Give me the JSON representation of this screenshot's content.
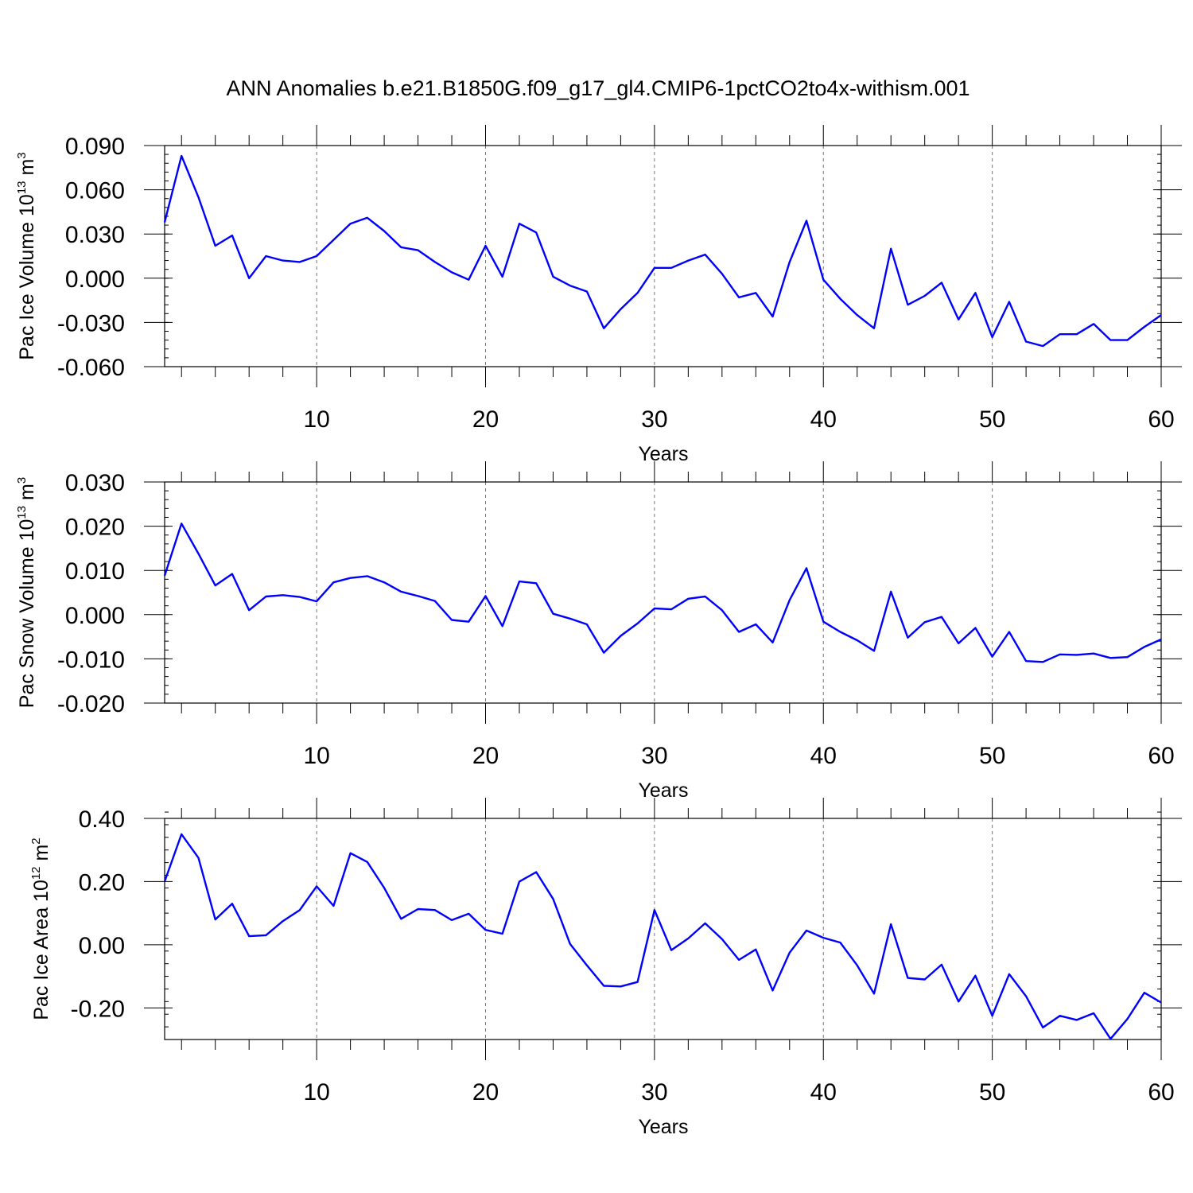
{
  "figure": {
    "title": "ANN Anomalies b.e21.B1850G.f09_g17_gl4.CMIP6-1pctCO2to4x-withism.001"
  },
  "colors": {
    "series": "#0000ff",
    "grid": "#777777",
    "axes": "#000000"
  },
  "chart_data": [
    {
      "type": "line",
      "name": "pac-ice-volume",
      "ylabel_main": "Pac Ice Volume 10",
      "ylabel_exp": "13",
      "ylabel_unit": " m",
      "ylabel_unit_exp": "3",
      "xlabel": "Years",
      "xlim": [
        1,
        60
      ],
      "ylim": [
        -0.06,
        0.09
      ],
      "yticks": [
        -0.06,
        -0.03,
        0.0,
        0.03,
        0.06,
        0.09
      ],
      "ytick_labels": [
        "-0.060",
        "-0.030",
        "0.000",
        "0.030",
        "0.060",
        "0.090"
      ],
      "yminor_step": 0.006,
      "xticks": [
        10,
        20,
        30,
        40,
        50,
        60
      ],
      "xtick_labels": [
        "10",
        "20",
        "30",
        "40",
        "50",
        "60"
      ],
      "grid_x": [
        10,
        20,
        30,
        40,
        50
      ],
      "x_start": 1,
      "values": [
        0.038,
        0.083,
        0.055,
        0.022,
        0.029,
        0.0,
        0.015,
        0.012,
        0.011,
        0.015,
        0.026,
        0.037,
        0.041,
        0.032,
        0.021,
        0.019,
        0.011,
        0.004,
        -0.001,
        0.022,
        0.001,
        0.037,
        0.031,
        0.001,
        -0.005,
        -0.009,
        -0.034,
        -0.021,
        -0.01,
        0.007,
        0.007,
        0.012,
        0.016,
        0.003,
        -0.013,
        -0.01,
        -0.026,
        0.011,
        0.039,
        -0.001,
        -0.014,
        -0.025,
        -0.034,
        0.02,
        -0.018,
        -0.012,
        -0.003,
        -0.028,
        -0.01,
        -0.04,
        -0.016,
        -0.043,
        -0.046,
        -0.038,
        -0.038,
        -0.031,
        -0.042,
        -0.042,
        -0.033,
        -0.025
      ]
    },
    {
      "type": "line",
      "name": "pac-snow-volume",
      "ylabel_main": "Pac Snow Volume 10",
      "ylabel_exp": "13",
      "ylabel_unit": " m",
      "ylabel_unit_exp": "3",
      "xlabel": "Years",
      "xlim": [
        1,
        60
      ],
      "ylim": [
        -0.02,
        0.03
      ],
      "yticks": [
        -0.02,
        -0.01,
        0.0,
        0.01,
        0.02,
        0.03
      ],
      "ytick_labels": [
        "-0.020",
        "-0.010",
        "0.000",
        "0.010",
        "0.020",
        "0.030"
      ],
      "yminor_step": 0.002,
      "xticks": [
        10,
        20,
        30,
        40,
        50,
        60
      ],
      "xtick_labels": [
        "10",
        "20",
        "30",
        "40",
        "50",
        "60"
      ],
      "grid_x": [
        10,
        20,
        30,
        40,
        50
      ],
      "x_start": 1,
      "values": [
        0.0088,
        0.0206,
        0.0138,
        0.0066,
        0.0092,
        0.001,
        0.0041,
        0.0044,
        0.004,
        0.003,
        0.0073,
        0.0083,
        0.0087,
        0.0073,
        0.0052,
        0.0042,
        0.0031,
        -0.0012,
        -0.0016,
        0.0042,
        -0.0026,
        0.0075,
        0.0071,
        0.0002,
        -0.0009,
        -0.0022,
        -0.0086,
        -0.0048,
        -0.002,
        0.0014,
        0.0012,
        0.0036,
        0.0041,
        0.001,
        -0.0039,
        -0.0022,
        -0.0063,
        0.0033,
        0.0105,
        -0.0016,
        -0.0039,
        -0.0058,
        -0.0082,
        0.0052,
        -0.0052,
        -0.0017,
        -0.0005,
        -0.0065,
        -0.003,
        -0.0095,
        -0.0039,
        -0.0105,
        -0.0107,
        -0.009,
        -0.0091,
        -0.0088,
        -0.0098,
        -0.0096,
        -0.0073,
        -0.0056
      ]
    },
    {
      "type": "line",
      "name": "pac-ice-area",
      "ylabel_main": "Pac Ice Area 10",
      "ylabel_exp": "12",
      "ylabel_unit": " m",
      "ylabel_unit_exp": "2",
      "xlabel": "Years",
      "xlim": [
        1,
        60
      ],
      "ylim": [
        -0.3,
        0.4
      ],
      "yticks": [
        -0.2,
        0.0,
        0.2,
        0.4
      ],
      "ytick_labels": [
        "-0.20",
        "0.00",
        "0.20",
        "0.40"
      ],
      "yminor_step": 0.04,
      "xticks": [
        10,
        20,
        30,
        40,
        50,
        60
      ],
      "xtick_labels": [
        "10",
        "20",
        "30",
        "40",
        "50",
        "60"
      ],
      "grid_x": [
        10,
        20,
        30,
        40,
        50
      ],
      "x_start": 1,
      "values": [
        0.2,
        0.35,
        0.275,
        0.08,
        0.13,
        0.027,
        0.03,
        0.075,
        0.11,
        0.185,
        0.123,
        0.29,
        0.262,
        0.18,
        0.082,
        0.113,
        0.11,
        0.078,
        0.098,
        0.047,
        0.035,
        0.2,
        0.23,
        0.145,
        0.003,
        -0.065,
        -0.13,
        -0.132,
        -0.118,
        0.11,
        -0.017,
        0.02,
        0.068,
        0.018,
        -0.048,
        -0.015,
        -0.145,
        -0.025,
        0.045,
        0.022,
        0.007,
        -0.065,
        -0.155,
        0.065,
        -0.105,
        -0.11,
        -0.063,
        -0.18,
        -0.098,
        -0.225,
        -0.093,
        -0.163,
        -0.262,
        -0.225,
        -0.238,
        -0.217,
        -0.298,
        -0.235,
        -0.152,
        -0.183
      ]
    }
  ]
}
